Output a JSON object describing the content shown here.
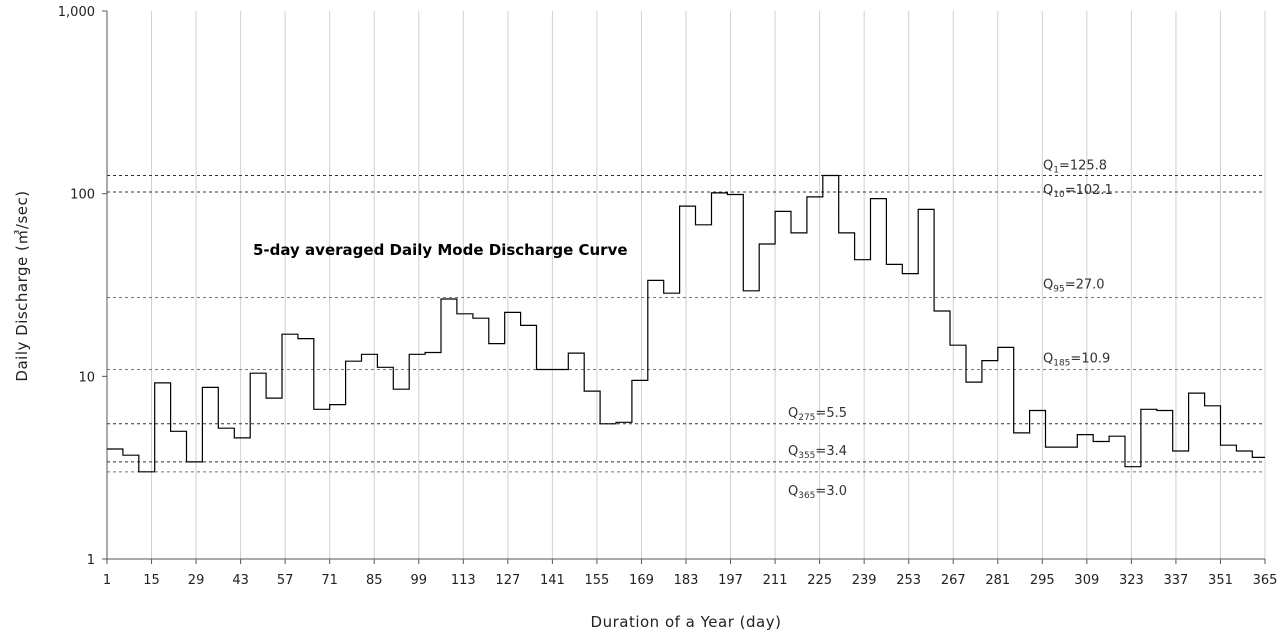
{
  "chart_data": {
    "type": "line",
    "title": "5-day averaged Daily Mode Discharge Curve",
    "xlabel": "Duration of a Year (day)",
    "ylabel": "Daily Discharge (㎥/sec)",
    "xlim": [
      1,
      365
    ],
    "ylim": [
      1,
      1000
    ],
    "yscale": "log",
    "grid": "vertical",
    "x_ticks": [
      "1",
      "15",
      "29",
      "43",
      "57",
      "71",
      "85",
      "99",
      "113",
      "127",
      "141",
      "155",
      "169",
      "183",
      "197",
      "211",
      "225",
      "239",
      "253",
      "267",
      "281",
      "295",
      "309",
      "323",
      "337",
      "351",
      "365"
    ],
    "y_ticks": [
      {
        "value": 1,
        "label": "1"
      },
      {
        "value": 10,
        "label": "10"
      },
      {
        "value": 100,
        "label": "100"
      },
      {
        "value": 1000,
        "label": "1,000"
      }
    ],
    "series": [
      {
        "color": "#000000",
        "steps": [
          [
            1,
            4.0
          ],
          [
            6,
            3.7
          ],
          [
            11,
            3.0
          ],
          [
            16,
            9.2
          ],
          [
            21,
            5.0
          ],
          [
            26,
            3.4
          ],
          [
            31,
            8.7
          ],
          [
            36,
            5.2
          ],
          [
            41,
            4.6
          ],
          [
            46,
            10.4
          ],
          [
            51,
            7.6
          ],
          [
            56,
            17.0
          ],
          [
            61,
            16.1
          ],
          [
            66,
            6.6
          ],
          [
            71,
            7.0
          ],
          [
            76,
            12.1
          ],
          [
            81,
            13.2
          ],
          [
            86,
            11.2
          ],
          [
            91,
            8.5
          ],
          [
            96,
            13.2
          ],
          [
            101,
            13.5
          ],
          [
            106,
            26.5
          ],
          [
            111,
            22.0
          ],
          [
            116,
            20.8
          ],
          [
            121,
            15.1
          ],
          [
            126,
            22.4
          ],
          [
            131,
            19.0
          ],
          [
            136,
            10.9
          ],
          [
            141,
            10.9
          ],
          [
            146,
            13.4
          ],
          [
            151,
            8.3
          ],
          [
            156,
            5.5
          ],
          [
            161,
            5.6
          ],
          [
            166,
            9.5
          ],
          [
            171,
            33.5
          ],
          [
            176,
            28.5
          ],
          [
            181,
            85.5
          ],
          [
            186,
            67.5
          ],
          [
            191,
            101.0
          ],
          [
            196,
            99.0
          ],
          [
            201,
            29.4
          ],
          [
            206,
            53.0
          ],
          [
            211,
            80.0
          ],
          [
            216,
            61.0
          ],
          [
            221,
            96.0
          ],
          [
            226,
            125.8
          ],
          [
            231,
            61.0
          ],
          [
            236,
            43.5
          ],
          [
            241,
            94.0
          ],
          [
            246,
            41.0
          ],
          [
            251,
            36.5
          ],
          [
            256,
            82.0
          ],
          [
            261,
            22.8
          ],
          [
            266,
            14.8
          ],
          [
            271,
            9.3
          ],
          [
            276,
            12.2
          ],
          [
            281,
            14.4
          ],
          [
            286,
            4.9
          ],
          [
            291,
            6.5
          ],
          [
            296,
            4.1
          ],
          [
            301,
            4.1
          ],
          [
            306,
            4.8
          ],
          [
            311,
            4.4
          ],
          [
            316,
            4.7
          ],
          [
            321,
            3.2
          ],
          [
            326,
            6.6
          ],
          [
            331,
            6.5
          ],
          [
            336,
            3.9
          ],
          [
            341,
            8.1
          ],
          [
            346,
            6.9
          ],
          [
            351,
            4.2
          ],
          [
            356,
            3.9
          ],
          [
            361,
            3.6
          ]
        ],
        "end_x": 365
      }
    ],
    "reference_lines": [
      {
        "sub": "1",
        "value": 125.8,
        "text": "=125.8",
        "style": "dark"
      },
      {
        "sub": "10",
        "value": 102.1,
        "text": "=102.1",
        "style": "dark"
      },
      {
        "sub": "95",
        "value": 27.0,
        "text": "=27.0",
        "style": "light"
      },
      {
        "sub": "185",
        "value": 10.9,
        "text": "=10.9",
        "style": "light"
      },
      {
        "sub": "275",
        "value": 5.5,
        "text": "=5.5",
        "style": "dark"
      },
      {
        "sub": "355",
        "value": 3.4,
        "text": "=3.4",
        "style": "dark"
      },
      {
        "sub": "365",
        "value": 3.0,
        "text": "=3.0",
        "style": "light"
      }
    ],
    "annotation_prefix": "Q"
  }
}
